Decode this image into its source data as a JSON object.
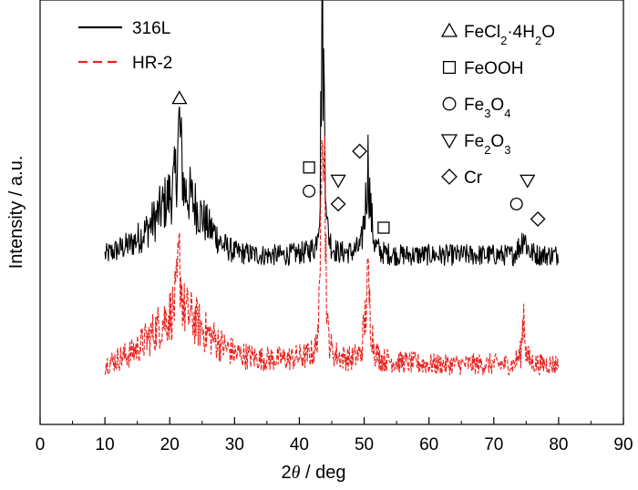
{
  "chart_data": {
    "type": "line",
    "title": "",
    "xlabel_prefix": "2",
    "xlabel_symbol": "θ",
    "xlabel_suffix": " / deg",
    "ylabel": "Intensity / a.u.",
    "xlim": [
      0,
      90
    ],
    "xticks": [
      "0",
      "10",
      "20",
      "30",
      "40",
      "50",
      "60",
      "70",
      "80",
      "90"
    ],
    "yticks_shown": false,
    "legend_position": "top-left",
    "series": [
      {
        "name": "316L",
        "color": "#000000",
        "style": "solid",
        "baseline": 60,
        "x": [
          10,
          12,
          14,
          16,
          18,
          19,
          20,
          20.5,
          21,
          21.3,
          21.5,
          21.8,
          22.2,
          23,
          24,
          25,
          26,
          27,
          28,
          30,
          34,
          38,
          41,
          42.5,
          43.2,
          43.5,
          43.8,
          44.3,
          45,
          46,
          48,
          49.5,
          50.2,
          50.6,
          51,
          51.6,
          52.5,
          55,
          60,
          65,
          70,
          73,
          74.2,
          74.6,
          75,
          75.6,
          77,
          80
        ],
        "values": [
          62,
          64,
          66,
          70,
          76,
          80,
          84,
          86,
          92,
          104,
          110,
          98,
          86,
          84,
          80,
          76,
          72,
          70,
          66,
          63,
          62,
          62,
          63,
          65,
          82,
          160,
          120,
          72,
          65,
          63,
          63,
          65,
          80,
          96,
          78,
          66,
          63,
          62,
          62,
          62,
          62,
          62,
          66,
          70,
          66,
          63,
          62,
          62
        ]
      },
      {
        "name": "HR-2",
        "color": "#e8231f",
        "style": "dashed",
        "baseline": 20,
        "x": [
          10,
          12,
          14,
          16,
          18,
          19,
          20,
          20.5,
          21,
          21.3,
          21.5,
          21.8,
          22.2,
          23,
          24,
          25,
          26,
          27,
          28,
          30,
          34,
          38,
          41,
          42.5,
          43.2,
          43.5,
          43.8,
          44.3,
          45,
          46,
          48,
          49.5,
          50.2,
          50.6,
          51,
          51.6,
          52.5,
          55,
          60,
          65,
          70,
          73,
          74.2,
          74.6,
          75,
          75.6,
          77,
          80
        ],
        "values": [
          22,
          24,
          26,
          30,
          35,
          38,
          40,
          42,
          46,
          56,
          61,
          50,
          42,
          40,
          38,
          35,
          33,
          31,
          29,
          26,
          24,
          24,
          25,
          27,
          45,
          153,
          110,
          35,
          27,
          25,
          24,
          26,
          40,
          53,
          38,
          27,
          24,
          23,
          22,
          22,
          22,
          22,
          26,
          42,
          26,
          23,
          22,
          22
        ]
      }
    ],
    "phase_legend": [
      {
        "marker": "triangle-up",
        "main": "FeCl",
        "sub1": "2",
        "mid": "·4H",
        "sub2": "2",
        "end": "O"
      },
      {
        "marker": "square",
        "main": "FeOOH",
        "sub1": "",
        "mid": "",
        "sub2": "",
        "end": ""
      },
      {
        "marker": "circle",
        "main": "Fe",
        "sub1": "3",
        "mid": "O",
        "sub2": "4",
        "end": ""
      },
      {
        "marker": "triangle-down",
        "main": "Fe",
        "sub1": "2",
        "mid": "O",
        "sub2": "3",
        "end": ""
      },
      {
        "marker": "diamond",
        "main": "Cr",
        "sub1": "",
        "mid": "",
        "sub2": "",
        "end": ""
      }
    ],
    "peak_markers": [
      {
        "marker": "triangle-up",
        "x": 21.5,
        "above": "316L",
        "slot": "single"
      },
      {
        "marker": "square",
        "x": 41.5,
        "above": "316L",
        "slot": "top"
      },
      {
        "marker": "triangle-down",
        "x": 46,
        "above": "316L",
        "slot": "top"
      },
      {
        "marker": "circle",
        "x": 41.5,
        "above": "316L",
        "slot": "bottom"
      },
      {
        "marker": "diamond",
        "x": 46,
        "above": "316L",
        "slot": "bottom"
      },
      {
        "marker": "diamond",
        "x": 49.3,
        "above": "316L",
        "slot": "left"
      },
      {
        "marker": "square",
        "x": 53,
        "above": "316L",
        "slot": "right"
      },
      {
        "marker": "triangle-down",
        "x": 75.2,
        "above": "316L",
        "slot": "top"
      },
      {
        "marker": "circle",
        "x": 73.5,
        "above": "316L",
        "slot": "bottom"
      },
      {
        "marker": "diamond",
        "x": 76.8,
        "above": "316L",
        "slot": "bottom"
      }
    ]
  }
}
